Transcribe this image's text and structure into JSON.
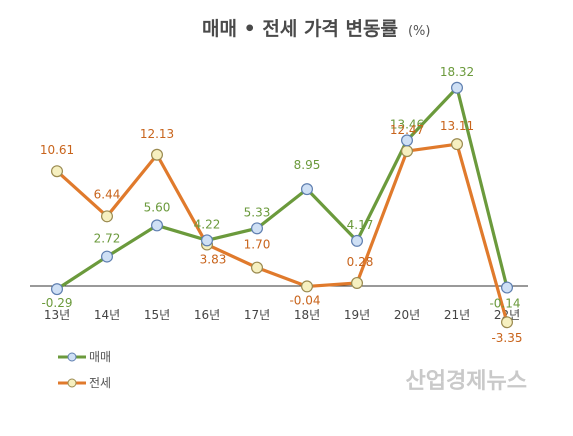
{
  "chart_data": {
    "type": "line",
    "title": "매매 • 전세 가격 변동률",
    "unit": "(%)",
    "categories": [
      "13년",
      "14년",
      "15년",
      "16년",
      "17년",
      "18년",
      "19년",
      "20년",
      "21년",
      "22년"
    ],
    "series": [
      {
        "name": "매매",
        "color": "#6b9a3c",
        "marker_fill": "#cfe0f5",
        "marker_stroke": "#5f7fb0",
        "values": [
          -0.29,
          2.72,
          5.6,
          4.22,
          5.33,
          8.95,
          4.17,
          13.46,
          18.32,
          -0.14
        ],
        "labels": [
          "-0.29",
          "2.72",
          "5.60",
          "4.22",
          "5.33",
          "8.95",
          "4.17",
          "13.46",
          "18.32",
          "-0.14"
        ]
      },
      {
        "name": "전세",
        "color": "#e07a2c",
        "marker_fill": "#f6f0c0",
        "marker_stroke": "#9a8a50",
        "values": [
          10.61,
          6.44,
          12.13,
          3.83,
          1.7,
          -0.04,
          0.28,
          12.47,
          13.11,
          -3.35
        ],
        "labels": [
          "10.61",
          "6.44",
          "12.13",
          "3.83",
          "1.70",
          "-0.04",
          "0.28",
          "12.47",
          "13.11",
          "-3.35"
        ]
      }
    ],
    "ylim": [
      -4,
      21
    ],
    "grid": false,
    "legend_position": "bottom-left"
  },
  "watermark": "산업경제뉴스"
}
